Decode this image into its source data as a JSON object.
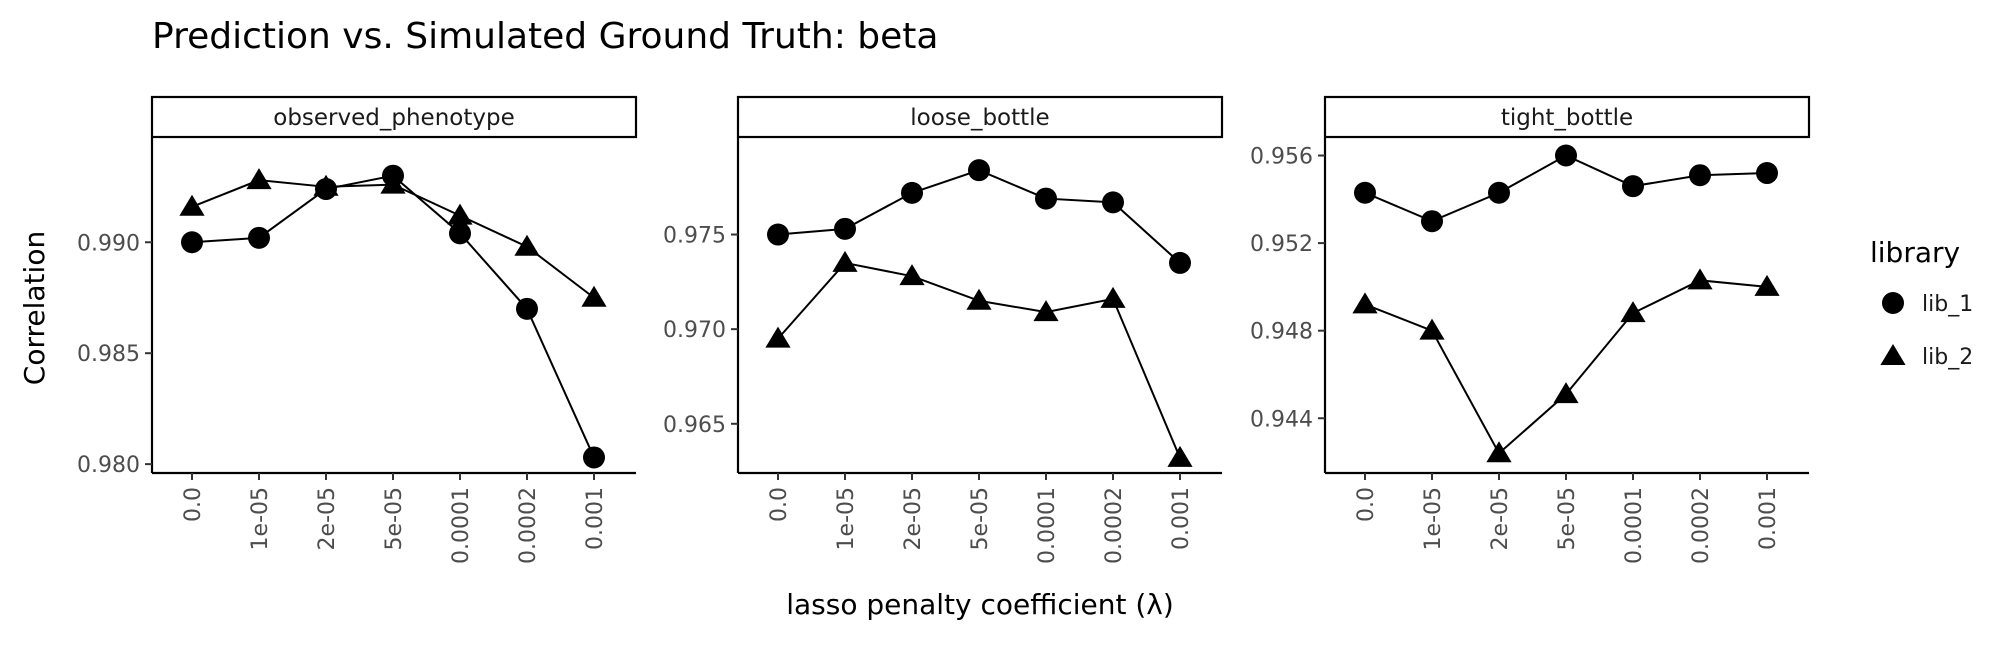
{
  "chart_data": {
    "type": "line",
    "title": "Prediction vs. Simulated Ground Truth: beta",
    "xlabel": "lasso penalty coefficient (λ)",
    "ylabel": "Correlation",
    "categories": [
      "0.0",
      "1e-05",
      "2e-05",
      "5e-05",
      "0.0001",
      "0.0002",
      "0.001"
    ],
    "legend": {
      "title": "library",
      "position": "right",
      "entries": [
        {
          "label": "lib_1",
          "shape": "circle"
        },
        {
          "label": "lib_2",
          "shape": "triangle"
        }
      ]
    },
    "grid": false,
    "panels": [
      {
        "name": "observed_phenotype",
        "ylim": [
          0.9796,
          0.9947
        ],
        "yticks": [
          0.98,
          0.985,
          0.99
        ],
        "ytick_labels": [
          "0.980",
          "0.985",
          "0.990"
        ],
        "series": [
          {
            "name": "lib_1",
            "shape": "circle",
            "values": [
              0.99,
              0.9902,
              0.9924,
              0.993,
              0.9904,
              0.987,
              0.9803
            ]
          },
          {
            "name": "lib_2",
            "shape": "triangle",
            "values": [
              0.9916,
              0.9928,
              0.9925,
              0.9926,
              0.9912,
              0.9898,
              0.9875
            ]
          }
        ]
      },
      {
        "name": "loose_bottle",
        "ylim": [
          0.9624,
          0.9801
        ],
        "yticks": [
          0.965,
          0.97,
          0.975
        ],
        "ytick_labels": [
          "0.965",
          "0.970",
          "0.975"
        ],
        "series": [
          {
            "name": "lib_1",
            "shape": "circle",
            "values": [
              0.975,
              0.9753,
              0.9772,
              0.9784,
              0.9769,
              0.9767,
              0.9735
            ]
          },
          {
            "name": "lib_2",
            "shape": "triangle",
            "values": [
              0.9695,
              0.9735,
              0.9728,
              0.9715,
              0.9709,
              0.9716,
              0.9632
            ]
          }
        ]
      },
      {
        "name": "tight_bottle",
        "ylim": [
          0.9415,
          0.9568
        ],
        "yticks": [
          0.944,
          0.948,
          0.952,
          0.956
        ],
        "ytick_labels": [
          "0.944",
          "0.948",
          "0.952",
          "0.956"
        ],
        "series": [
          {
            "name": "lib_1",
            "shape": "circle",
            "values": [
              0.9543,
              0.953,
              0.9543,
              0.956,
              0.9546,
              0.9551,
              0.9552
            ]
          },
          {
            "name": "lib_2",
            "shape": "triangle",
            "values": [
              0.9492,
              0.948,
              0.9424,
              0.9451,
              0.9488,
              0.9503,
              0.95
            ]
          }
        ]
      }
    ]
  }
}
